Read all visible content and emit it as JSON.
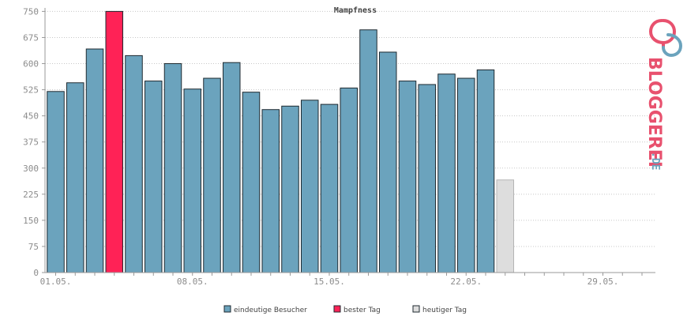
{
  "chart_data": {
    "type": "bar",
    "title": "Mampfness",
    "xlabel": "",
    "ylabel": "",
    "ylim": [
      0,
      760
    ],
    "yticks": [
      0,
      75,
      150,
      225,
      300,
      375,
      450,
      525,
      600,
      675,
      750
    ],
    "xtick_labels": [
      {
        "day": 1,
        "label": "01.05."
      },
      {
        "day": 8,
        "label": "08.05."
      },
      {
        "day": 15,
        "label": "15.05."
      },
      {
        "day": 22,
        "label": "22.05."
      },
      {
        "day": 29,
        "label": "29.05."
      }
    ],
    "days": [
      1,
      2,
      3,
      4,
      5,
      6,
      7,
      8,
      9,
      10,
      11,
      12,
      13,
      14,
      15,
      16,
      17,
      18,
      19,
      20,
      21,
      22,
      23,
      24,
      25,
      26,
      27,
      28,
      29,
      30,
      31
    ],
    "series": [
      {
        "name": "eindeutige Besucher",
        "color": "#6ba3bd",
        "values": [
          520,
          545,
          642,
          null,
          623,
          550,
          600,
          527,
          558,
          603,
          518,
          468,
          478,
          495,
          483,
          530,
          697,
          633,
          550,
          540,
          570,
          558,
          582,
          null,
          null,
          null,
          null,
          null,
          null,
          null,
          null
        ]
      },
      {
        "name": "bester Tag",
        "color": "#ff2256",
        "values": [
          null,
          null,
          null,
          750,
          null,
          null,
          null,
          null,
          null,
          null,
          null,
          null,
          null,
          null,
          null,
          null,
          null,
          null,
          null,
          null,
          null,
          null,
          null,
          null,
          null,
          null,
          null,
          null,
          null,
          null,
          null
        ]
      },
      {
        "name": "heutiger Tag",
        "color": "#dddddd",
        "values": [
          null,
          null,
          null,
          null,
          null,
          null,
          null,
          null,
          null,
          null,
          null,
          null,
          null,
          null,
          null,
          null,
          null,
          null,
          null,
          null,
          null,
          null,
          null,
          266,
          null,
          null,
          null,
          null,
          null,
          null,
          null
        ]
      }
    ],
    "grid": true,
    "legend_position": "bottom-center"
  },
  "brand": {
    "name": "BLOGGEREI",
    "suffix": ".DE",
    "logo_icon": "bloggerei-logo-icon"
  }
}
